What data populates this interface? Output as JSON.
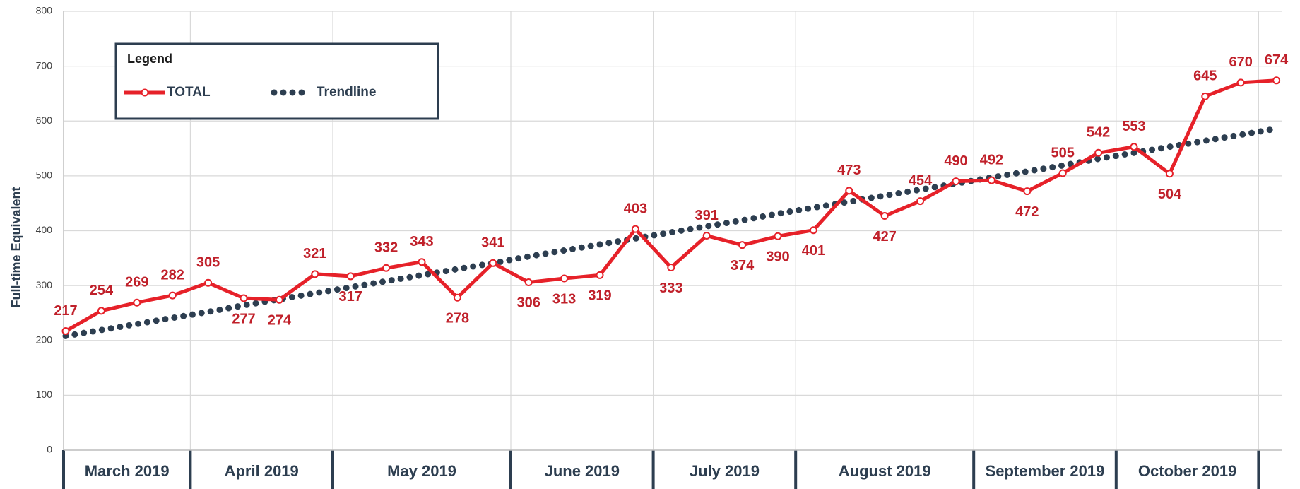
{
  "chart_data": {
    "type": "line",
    "y_axis_label": "Full-time Equivalent",
    "legend_title": "Legend",
    "categories": [
      null,
      null,
      null,
      null,
      null,
      null,
      null,
      null,
      null,
      null,
      null,
      null,
      null,
      null,
      null,
      null,
      null,
      null,
      null,
      null,
      null,
      null,
      null,
      null,
      null,
      null,
      null,
      null,
      null,
      null,
      null,
      null,
      null,
      null,
      null
    ],
    "groups": [
      {
        "label": "March 2019",
        "size": 4
      },
      {
        "label": "April 2019",
        "size": 4
      },
      {
        "label": "May 2019",
        "size": 5
      },
      {
        "label": "June 2019",
        "size": 4
      },
      {
        "label": "July 2019",
        "size": 4
      },
      {
        "label": "August 2019",
        "size": 5
      },
      {
        "label": "September 2019",
        "size": 4
      },
      {
        "label": "October 2019",
        "size": 4
      },
      {
        "label": null,
        "size": 1
      }
    ],
    "series": [
      {
        "name": "TOTAL",
        "color": "#e62129",
        "style": "solid",
        "show_labels": true,
        "values": [
          217,
          254,
          269,
          282,
          305,
          277,
          274,
          321,
          317,
          332,
          343,
          278,
          341,
          306,
          313,
          319,
          403,
          333,
          391,
          374,
          390,
          401,
          473,
          427,
          454,
          490,
          492,
          472,
          505,
          542,
          553,
          504,
          645,
          670,
          674
        ]
      },
      {
        "name": "Trendline",
        "color": "#2d3e50",
        "style": "dotted",
        "show_labels": false,
        "values": [
          208,
          219,
          230,
          241,
          252,
          264,
          275,
          286,
          297,
          308,
          319,
          330,
          341,
          353,
          364,
          375,
          386,
          397,
          408,
          419,
          431,
          442,
          453,
          464,
          475,
          486,
          497,
          508,
          519,
          531,
          542,
          553,
          564,
          575,
          586
        ]
      }
    ],
    "ylim": [
      0,
      800
    ],
    "yticks": [
      0,
      100,
      200,
      300,
      400,
      500,
      600,
      700,
      800
    ],
    "grid": true,
    "legend_position": "upper left"
  }
}
